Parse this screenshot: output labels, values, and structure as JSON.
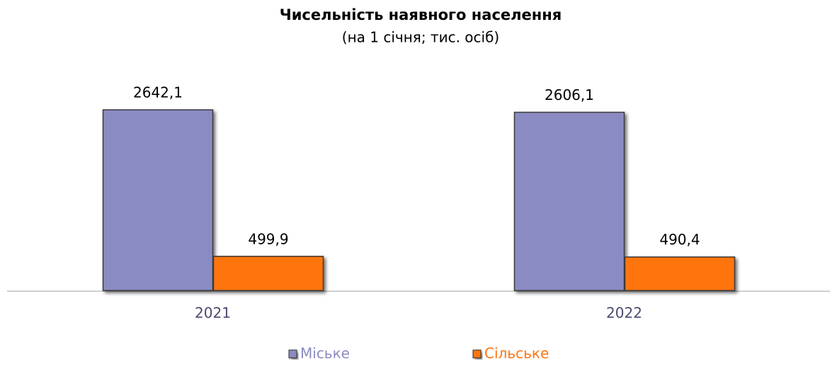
{
  "chart_data": {
    "type": "bar",
    "title": "Чисельність наявного населення",
    "subtitle": "(на 1 січня; тис. осіб)",
    "categories": [
      "2021",
      "2022"
    ],
    "series": [
      {
        "name": "Міське",
        "color": "#8b8bc3",
        "values": [
          2642.1,
          2606.1
        ],
        "value_labels": [
          "2642,1",
          "2606,1"
        ]
      },
      {
        "name": "Сільське",
        "color": "#ff7410",
        "values": [
          499.9,
          490.4
        ],
        "value_labels": [
          "499,9",
          "490,4"
        ]
      }
    ],
    "legend": "bottom"
  }
}
